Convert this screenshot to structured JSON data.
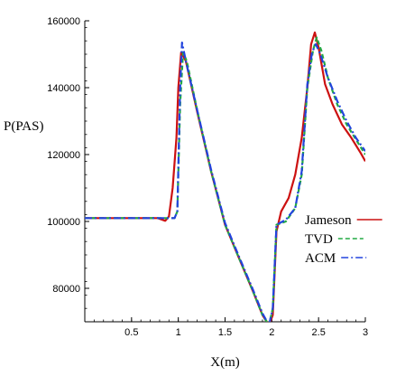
{
  "chart_data": {
    "type": "line",
    "xlabel": "X(m)",
    "ylabel": "P(PAS)",
    "xlim": [
      0,
      3
    ],
    "ylim": [
      70000,
      160000
    ],
    "xticks": [
      0.5,
      1,
      1.5,
      2,
      2.5,
      3
    ],
    "xtick_labels": [
      "0.5",
      "1",
      "1.5",
      "2",
      "2.5",
      "3"
    ],
    "yticks": [
      80000,
      100000,
      120000,
      140000,
      160000
    ],
    "ytick_labels": [
      "80000",
      "100000",
      "120000",
      "140000",
      "160000"
    ],
    "grid": false,
    "legend_position": "right",
    "series": [
      {
        "name": "Jameson",
        "color": "#cc1111",
        "dash": "solid",
        "points": [
          [
            0,
            101000
          ],
          [
            0.78,
            101000
          ],
          [
            0.86,
            100200
          ],
          [
            0.9,
            101500
          ],
          [
            0.94,
            110000
          ],
          [
            0.98,
            125000
          ],
          [
            1.0,
            140000
          ],
          [
            1.03,
            150500
          ],
          [
            1.08,
            148000
          ],
          [
            1.2,
            133000
          ],
          [
            1.35,
            115000
          ],
          [
            1.5,
            99000
          ],
          [
            1.65,
            89000
          ],
          [
            1.8,
            79000
          ],
          [
            1.9,
            72000
          ],
          [
            1.97,
            69000
          ],
          [
            2.01,
            72000
          ],
          [
            2.05,
            97000
          ],
          [
            2.1,
            103000
          ],
          [
            2.18,
            107000
          ],
          [
            2.25,
            114000
          ],
          [
            2.32,
            125000
          ],
          [
            2.38,
            140000
          ],
          [
            2.42,
            153000
          ],
          [
            2.46,
            156500
          ],
          [
            2.5,
            152000
          ],
          [
            2.57,
            141000
          ],
          [
            2.65,
            135000
          ],
          [
            2.75,
            129000
          ],
          [
            2.85,
            125000
          ],
          [
            2.95,
            120500
          ],
          [
            3.0,
            118000
          ]
        ]
      },
      {
        "name": "TVD",
        "color": "#22aa44",
        "dash": "5,3",
        "points": [
          [
            0,
            101000
          ],
          [
            0.96,
            101000
          ],
          [
            0.99,
            103000
          ],
          [
            1.02,
            135000
          ],
          [
            1.05,
            150500
          ],
          [
            1.09,
            148000
          ],
          [
            1.2,
            133500
          ],
          [
            1.35,
            115000
          ],
          [
            1.5,
            99000
          ],
          [
            1.65,
            89000
          ],
          [
            1.8,
            79000
          ],
          [
            1.9,
            72000
          ],
          [
            1.97,
            69000
          ],
          [
            2.01,
            74000
          ],
          [
            2.05,
            99000
          ],
          [
            2.15,
            100000
          ],
          [
            2.25,
            104000
          ],
          [
            2.32,
            114000
          ],
          [
            2.38,
            140000
          ],
          [
            2.44,
            151000
          ],
          [
            2.48,
            155000
          ],
          [
            2.53,
            151000
          ],
          [
            2.6,
            143000
          ],
          [
            2.7,
            135000
          ],
          [
            2.8,
            129000
          ],
          [
            2.9,
            124500
          ],
          [
            3.0,
            120000
          ]
        ]
      },
      {
        "name": "ACM",
        "color": "#2244dd",
        "dash": "8,3,2,3",
        "points": [
          [
            0,
            101000
          ],
          [
            0.96,
            101000
          ],
          [
            0.99,
            103000
          ],
          [
            1.02,
            140000
          ],
          [
            1.04,
            153500
          ],
          [
            1.08,
            148000
          ],
          [
            1.2,
            133500
          ],
          [
            1.35,
            115500
          ],
          [
            1.5,
            99500
          ],
          [
            1.65,
            89500
          ],
          [
            1.8,
            79500
          ],
          [
            1.9,
            72500
          ],
          [
            1.97,
            69000
          ],
          [
            2.01,
            74000
          ],
          [
            2.05,
            99000
          ],
          [
            2.15,
            100500
          ],
          [
            2.25,
            104000
          ],
          [
            2.32,
            115000
          ],
          [
            2.38,
            141000
          ],
          [
            2.43,
            150500
          ],
          [
            2.47,
            153000
          ],
          [
            2.52,
            150000
          ],
          [
            2.6,
            143000
          ],
          [
            2.7,
            136000
          ],
          [
            2.8,
            130000
          ],
          [
            2.9,
            125000
          ],
          [
            3.0,
            121000
          ]
        ]
      }
    ]
  }
}
